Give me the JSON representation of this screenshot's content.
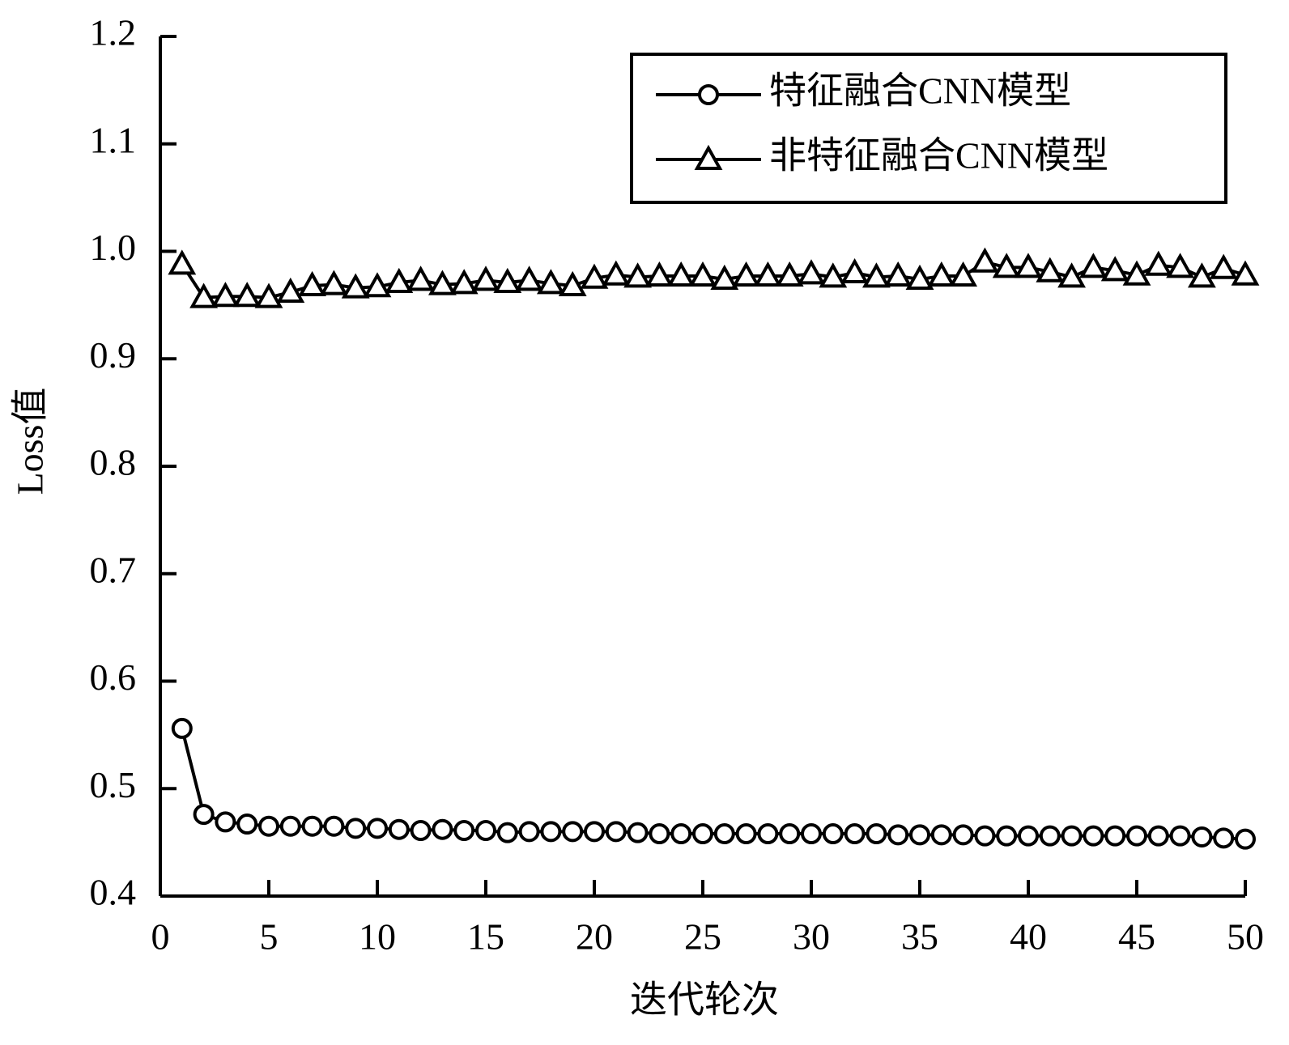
{
  "chart_data": {
    "type": "line",
    "x_label": "迭代轮次",
    "y_label": "Loss值",
    "x": [
      1,
      2,
      3,
      4,
      5,
      6,
      7,
      8,
      9,
      10,
      11,
      12,
      13,
      14,
      15,
      16,
      17,
      18,
      19,
      20,
      21,
      22,
      23,
      24,
      25,
      26,
      27,
      28,
      29,
      30,
      31,
      32,
      33,
      34,
      35,
      36,
      37,
      38,
      39,
      40,
      41,
      42,
      43,
      44,
      45,
      46,
      47,
      48,
      49,
      50
    ],
    "series": [
      {
        "name": "特征融合CNN模型",
        "color": "#000000",
        "marker": "circle",
        "values": [
          0.556,
          0.476,
          0.469,
          0.467,
          0.465,
          0.465,
          0.465,
          0.465,
          0.463,
          0.463,
          0.462,
          0.461,
          0.462,
          0.461,
          0.461,
          0.459,
          0.46,
          0.46,
          0.46,
          0.46,
          0.46,
          0.459,
          0.458,
          0.458,
          0.458,
          0.458,
          0.458,
          0.458,
          0.458,
          0.458,
          0.458,
          0.458,
          0.458,
          0.457,
          0.457,
          0.457,
          0.457,
          0.456,
          0.456,
          0.456,
          0.456,
          0.456,
          0.456,
          0.456,
          0.456,
          0.456,
          0.456,
          0.455,
          0.454,
          0.453
        ]
      },
      {
        "name": "非特征融合CNN模型",
        "color": "#000000",
        "marker": "triangle",
        "values": [
          0.988,
          0.957,
          0.958,
          0.958,
          0.957,
          0.962,
          0.968,
          0.969,
          0.966,
          0.967,
          0.971,
          0.973,
          0.969,
          0.97,
          0.973,
          0.971,
          0.973,
          0.97,
          0.968,
          0.975,
          0.978,
          0.976,
          0.977,
          0.977,
          0.977,
          0.974,
          0.977,
          0.977,
          0.977,
          0.979,
          0.976,
          0.98,
          0.976,
          0.977,
          0.974,
          0.977,
          0.977,
          0.99,
          0.985,
          0.985,
          0.981,
          0.976,
          0.985,
          0.982,
          0.978,
          0.987,
          0.985,
          0.976,
          0.984,
          0.978
        ]
      }
    ],
    "xlim": [
      0,
      50
    ],
    "xticks": [
      0,
      5,
      10,
      15,
      20,
      25,
      30,
      35,
      40,
      45,
      50
    ],
    "ylim": [
      0.4,
      1.2
    ],
    "yticks": [
      0.4,
      0.5,
      0.6,
      0.7,
      0.8,
      0.9,
      {
        "value": 1,
        "label": "1.0"
      },
      1.1,
      1.2
    ],
    "legend": "upper right",
    "grid": false
  }
}
